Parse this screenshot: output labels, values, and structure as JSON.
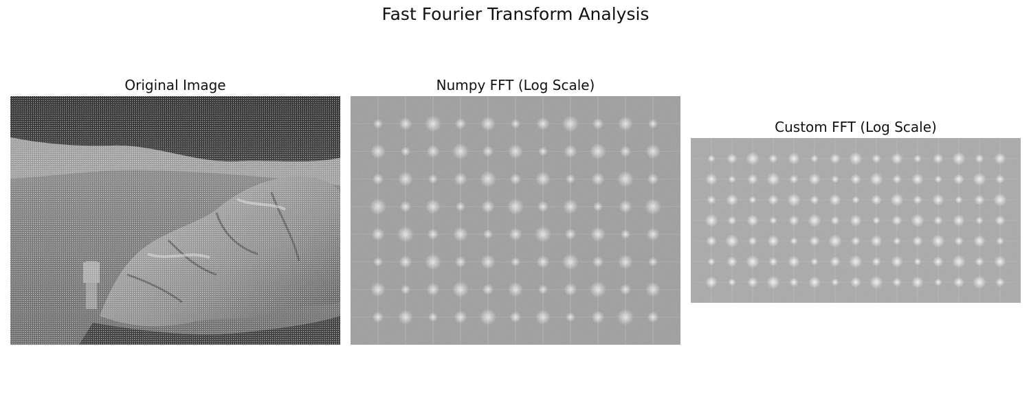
{
  "figure": {
    "title": "Fast Fourier Transform Analysis"
  },
  "panels": [
    {
      "title": "Original Image",
      "content": "grayscale photograph of a large boulder on a lunar surface with a small figure standing beside it, overlaid with a fine dot pattern"
    },
    {
      "title": "Numpy FFT (Log Scale)",
      "content": "grayscale log-magnitude spectrum with a regular lattice of bright peaks"
    },
    {
      "title": "Custom FFT (Log Scale)",
      "content": "grayscale log-magnitude spectrum with a denser lattice of bright peaks and streaks"
    }
  ],
  "colors": {
    "background": "#ffffff",
    "text": "#111111",
    "spectrum_gray": "#9a9a9a"
  }
}
